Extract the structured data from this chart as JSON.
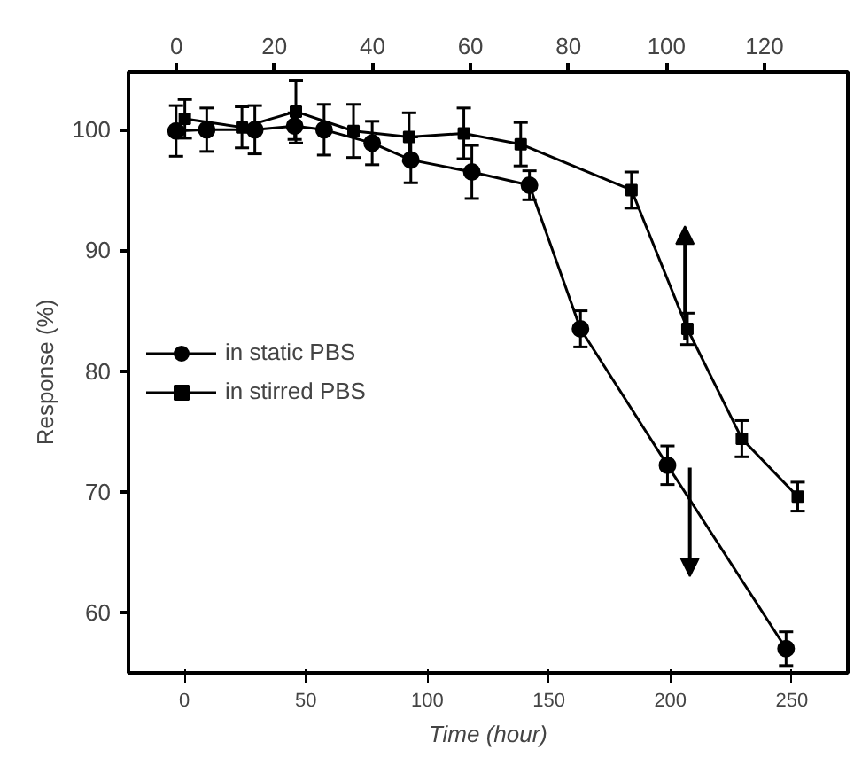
{
  "chart_data": {
    "type": "line",
    "xlabel": "Time (hour)",
    "ylabel": "Response (%)",
    "xlim": [
      -23,
      273
    ],
    "xticks": [
      0,
      50,
      100,
      150,
      200,
      250
    ],
    "x2lim": [
      -9.8,
      137
    ],
    "x2ticks": [
      0,
      20,
      40,
      60,
      80,
      100,
      120
    ],
    "ylim": [
      55,
      104.8
    ],
    "yticks": [
      60,
      70,
      80,
      90,
      100
    ],
    "legend": "left",
    "grid": false,
    "line_style": "solid",
    "series": [
      {
        "name": "in static PBS",
        "color": "#000000",
        "marker": "circle",
        "x": [
          -3.4,
          9.2,
          29,
          45.4,
          57.5,
          77.3,
          93.2,
          118.3,
          142,
          163,
          198.8,
          247.6
        ],
        "values": [
          99.9,
          100,
          100,
          100.3,
          100,
          98.9,
          97.5,
          96.5,
          95.4,
          83.5,
          72.2,
          57
        ],
        "errors": [
          2.1,
          1.8,
          2,
          1.1,
          2.1,
          1.8,
          1.9,
          2.2,
          1.2,
          1.5,
          1.6,
          1.4
        ]
      },
      {
        "name": "in stirred PBS",
        "color": "#000000",
        "marker": "square",
        "x": [
          0.2,
          23.7,
          45.9,
          69.6,
          92.5,
          115,
          138.4,
          184,
          207,
          229.4,
          252.4
        ],
        "values": [
          100.9,
          100.2,
          101.5,
          99.9,
          99.4,
          99.7,
          98.8,
          95,
          83.5,
          74.4,
          69.6
        ],
        "errors": [
          1.6,
          1.7,
          2.6,
          2.2,
          2,
          2.1,
          1.8,
          1.5,
          1.3,
          1.5,
          1.2
        ]
      }
    ]
  }
}
